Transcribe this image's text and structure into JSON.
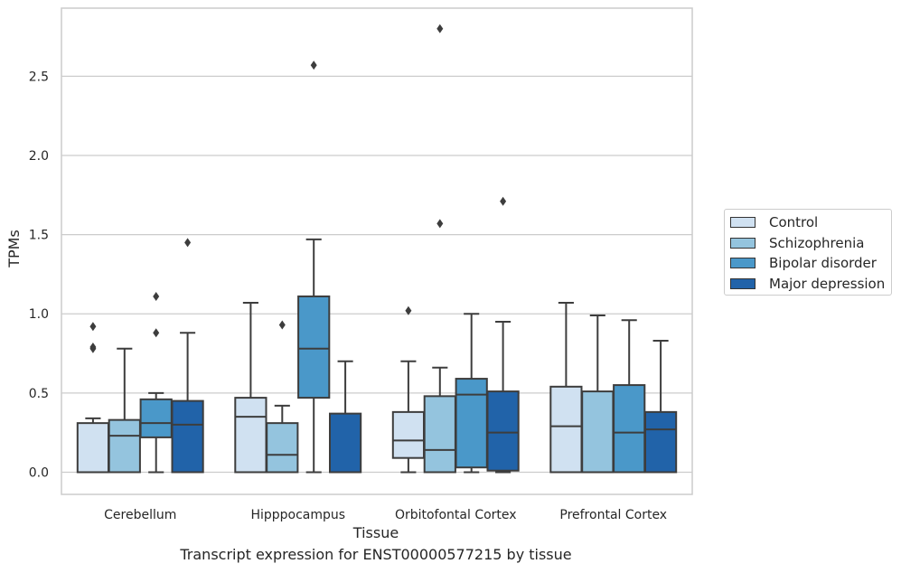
{
  "chart_data": {
    "type": "box",
    "xlabel": "Tissue",
    "ylabel": "TPMs",
    "caption": "Transcript expression for ENST00000577215 by tissue",
    "categories": [
      "Cerebellum",
      "Hipppocampus",
      "Orbitofontal Cortex",
      "Prefrontal Cortex"
    ],
    "ylim": [
      -0.14,
      2.93
    ],
    "yticks": [
      0.0,
      0.5,
      1.0,
      1.5,
      2.0,
      2.5
    ],
    "ytick_labels": [
      "0.0",
      "0.5",
      "1.0",
      "1.5",
      "2.0",
      "2.5"
    ],
    "grid": true,
    "legend_position": "right",
    "series": [
      {
        "name": "Control",
        "color": "#d0e1f1",
        "boxes": [
          {
            "low": 0.0,
            "q1": 0.0,
            "median": 0.0,
            "q3": 0.31,
            "high": 0.34,
            "outliers": [
              0.92,
              0.79,
              0.78
            ]
          },
          {
            "low": 0.0,
            "q1": 0.0,
            "median": 0.35,
            "q3": 0.47,
            "high": 1.07,
            "outliers": []
          },
          {
            "low": 0.0,
            "q1": 0.09,
            "median": 0.2,
            "q3": 0.38,
            "high": 0.7,
            "outliers": [
              1.02
            ]
          },
          {
            "low": 0.0,
            "q1": 0.0,
            "median": 0.29,
            "q3": 0.54,
            "high": 1.07,
            "outliers": []
          }
        ]
      },
      {
        "name": "Schizophrenia",
        "color": "#94c4de",
        "boxes": [
          {
            "low": 0.0,
            "q1": 0.0,
            "median": 0.23,
            "q3": 0.33,
            "high": 0.78,
            "outliers": []
          },
          {
            "low": 0.0,
            "q1": 0.0,
            "median": 0.11,
            "q3": 0.31,
            "high": 0.42,
            "outliers": [
              0.93
            ]
          },
          {
            "low": 0.0,
            "q1": 0.0,
            "median": 0.14,
            "q3": 0.48,
            "high": 0.66,
            "outliers": [
              2.8,
              1.57
            ]
          },
          {
            "low": 0.0,
            "q1": 0.0,
            "median": 0.0,
            "q3": 0.51,
            "high": 0.99,
            "outliers": []
          }
        ]
      },
      {
        "name": "Bipolar disorder",
        "color": "#4a98c9",
        "boxes": [
          {
            "low": 0.0,
            "q1": 0.22,
            "median": 0.31,
            "q3": 0.46,
            "high": 0.5,
            "outliers": [
              1.11,
              0.88
            ]
          },
          {
            "low": 0.0,
            "q1": 0.47,
            "median": 0.78,
            "q3": 1.11,
            "high": 1.47,
            "outliers": [
              2.57
            ]
          },
          {
            "low": 0.0,
            "q1": 0.03,
            "median": 0.49,
            "q3": 0.59,
            "high": 1.0,
            "outliers": []
          },
          {
            "low": 0.0,
            "q1": 0.0,
            "median": 0.25,
            "q3": 0.55,
            "high": 0.96,
            "outliers": []
          }
        ]
      },
      {
        "name": "Major depression",
        "color": "#2163a9",
        "boxes": [
          {
            "low": 0.0,
            "q1": 0.0,
            "median": 0.3,
            "q3": 0.45,
            "high": 0.88,
            "outliers": [
              1.45
            ]
          },
          {
            "low": 0.0,
            "q1": 0.0,
            "median": 0.0,
            "q3": 0.37,
            "high": 0.7,
            "outliers": []
          },
          {
            "low": 0.0,
            "q1": 0.01,
            "median": 0.25,
            "q3": 0.51,
            "high": 0.95,
            "outliers": [
              1.71
            ]
          },
          {
            "low": 0.0,
            "q1": 0.0,
            "median": 0.27,
            "q3": 0.38,
            "high": 0.83,
            "outliers": []
          }
        ]
      }
    ]
  }
}
